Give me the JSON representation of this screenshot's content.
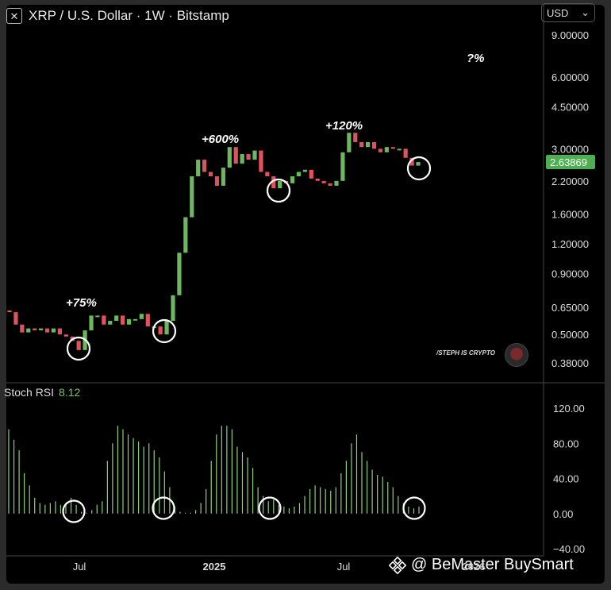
{
  "header": {
    "symbol": "XRP / U.S. Dollar · 1W · Bitstamp",
    "close_glyph": "✕"
  },
  "currency": {
    "label": "USD",
    "caret": "⌄"
  },
  "indicator": {
    "name": "Stoch RSI",
    "value": "8.12"
  },
  "author_tag": "/STEPH IS CRYPTO",
  "watermark": {
    "text": "@ BeMaster BuySmart",
    "icon": "binance-logo-icon"
  },
  "colors": {
    "up": "#6cb85e",
    "down": "#e0525c",
    "last_price_bg": "#4caf50",
    "rsi": "#8fd07f"
  },
  "chart_data": [
    {
      "type": "candlestick",
      "scale": "log",
      "yticks": [
        "9.00000",
        "6.00000",
        "4.50000",
        "3.00000",
        "2.20000",
        "1.60000",
        "1.20000",
        "0.90000",
        "0.65000",
        "0.50000",
        "0.38000"
      ],
      "ytick_values": [
        9,
        6,
        4.5,
        3,
        2.2,
        1.6,
        1.2,
        0.9,
        0.65,
        0.5,
        0.38
      ],
      "xticks": [
        "Jul",
        "2025",
        "Jul",
        "2026"
      ],
      "last_price": "2.63869",
      "annotations": [
        "+75%",
        "+600%",
        "+120%",
        "?%"
      ],
      "candles": [
        [
          0.63,
          0.62
        ],
        [
          0.62,
          0.55
        ],
        [
          0.55,
          0.51
        ],
        [
          0.51,
          0.53
        ],
        [
          0.53,
          0.52
        ],
        [
          0.52,
          0.53
        ],
        [
          0.53,
          0.51
        ],
        [
          0.51,
          0.53
        ],
        [
          0.53,
          0.5
        ],
        [
          0.5,
          0.49
        ],
        [
          0.49,
          0.47
        ],
        [
          0.47,
          0.43
        ],
        [
          0.43,
          0.52
        ],
        [
          0.52,
          0.6
        ],
        [
          0.6,
          0.6
        ],
        [
          0.6,
          0.55
        ],
        [
          0.55,
          0.57
        ],
        [
          0.57,
          0.6
        ],
        [
          0.6,
          0.55
        ],
        [
          0.55,
          0.58
        ],
        [
          0.58,
          0.58
        ],
        [
          0.58,
          0.61
        ],
        [
          0.61,
          0.54
        ],
        [
          0.54,
          0.54
        ],
        [
          0.54,
          0.5
        ],
        [
          0.5,
          0.57
        ],
        [
          0.57,
          0.73
        ],
        [
          0.73,
          1.1
        ],
        [
          1.1,
          1.55
        ],
        [
          1.55,
          2.3
        ],
        [
          2.3,
          2.7
        ],
        [
          2.7,
          2.4
        ],
        [
          2.4,
          2.3
        ],
        [
          2.3,
          2.1
        ],
        [
          2.1,
          2.5
        ],
        [
          2.5,
          3.05
        ],
        [
          3.05,
          2.6
        ],
        [
          2.6,
          2.85
        ],
        [
          2.85,
          2.7
        ],
        [
          2.7,
          2.95
        ],
        [
          2.95,
          2.4
        ],
        [
          2.4,
          2.3
        ],
        [
          2.3,
          2.05
        ],
        [
          2.05,
          2.2
        ],
        [
          2.2,
          2.15
        ],
        [
          2.15,
          2.3
        ],
        [
          2.3,
          2.4
        ],
        [
          2.4,
          2.45
        ],
        [
          2.45,
          2.25
        ],
        [
          2.25,
          2.2
        ],
        [
          2.2,
          2.15
        ],
        [
          2.15,
          2.1
        ],
        [
          2.1,
          2.2
        ],
        [
          2.2,
          2.9
        ],
        [
          2.9,
          3.5
        ],
        [
          3.5,
          3.2
        ],
        [
          3.2,
          3.05
        ],
        [
          3.05,
          3.2
        ],
        [
          3.2,
          3.0
        ],
        [
          3.0,
          2.9
        ],
        [
          2.9,
          3.05
        ],
        [
          3.05,
          3.0
        ],
        [
          3.0,
          3.0
        ],
        [
          3.0,
          2.75
        ],
        [
          2.75,
          2.55
        ],
        [
          2.55,
          2.64
        ]
      ]
    },
    {
      "type": "bar",
      "name": "Stoch RSI",
      "ylim": [
        -40,
        140
      ],
      "yticks": [
        "120.00",
        "80.00",
        "40.00",
        "0.00",
        "−40.00"
      ],
      "ytick_values": [
        120,
        80,
        40,
        0,
        -40
      ],
      "values": [
        96,
        84,
        72,
        46,
        32,
        18,
        12,
        10,
        12,
        14,
        10,
        12,
        18,
        10,
        2,
        0,
        4,
        10,
        14,
        60,
        80,
        100,
        96,
        90,
        86,
        82,
        76,
        80,
        72,
        64,
        48,
        30,
        8,
        2,
        0,
        0,
        4,
        12,
        28,
        60,
        90,
        100,
        100,
        96,
        76,
        70,
        64,
        52,
        30,
        20,
        14,
        16,
        10,
        8,
        6,
        8,
        12,
        20,
        28,
        32,
        30,
        28,
        26,
        30,
        46,
        60,
        80,
        90,
        70,
        60,
        50,
        44,
        42,
        36,
        30,
        20,
        12,
        8,
        6,
        8
      ]
    }
  ]
}
